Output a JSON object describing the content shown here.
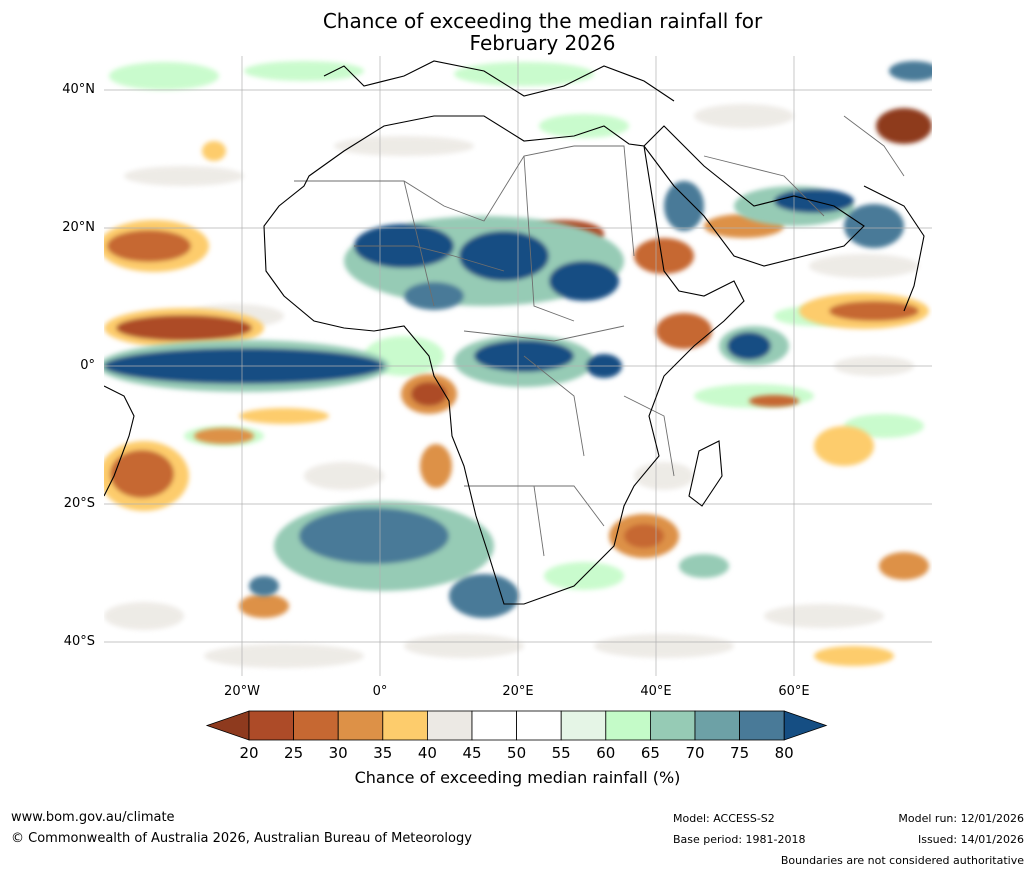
{
  "title_line1": "Chance of exceeding the median rainfall for",
  "title_line2": "February 2026",
  "map": {
    "region": "Africa",
    "lat_range": [
      -45,
      45
    ],
    "lon_range": [
      -40,
      80
    ],
    "lat_labels": [
      "40°N",
      "20°N",
      "0°",
      "20°S",
      "40°S"
    ],
    "lon_labels": [
      "20°W",
      "0°",
      "20°E",
      "40°E",
      "60°E"
    ]
  },
  "colorbar": {
    "ticks": [
      "20",
      "25",
      "30",
      "35",
      "40",
      "45",
      "50",
      "55",
      "60",
      "65",
      "70",
      "75",
      "80"
    ],
    "colors": [
      "#8e3a1e",
      "#ad4b28",
      "#c66832",
      "#dd9147",
      "#fdcc6c",
      "#ece9e4",
      "#ffffff",
      "#ffffff",
      "#e5f5e6",
      "#c4fbc8",
      "#96cbb5",
      "#6da1a6",
      "#497a98",
      "#154e83"
    ],
    "label": "Chance of exceeding median rainfall (%)"
  },
  "footer": {
    "website": "www.bom.gov.au/climate",
    "copyright": "© Commonwealth of Australia 2026, Australian Bureau of Meteorology",
    "model": "Model: ACCESS-S2",
    "base_period": "Base period: 1981-2018",
    "model_run": "Model run: 12/01/2026",
    "issued": "Issued: 14/01/2026",
    "disclaimer": "Boundaries are not considered authoritative"
  }
}
